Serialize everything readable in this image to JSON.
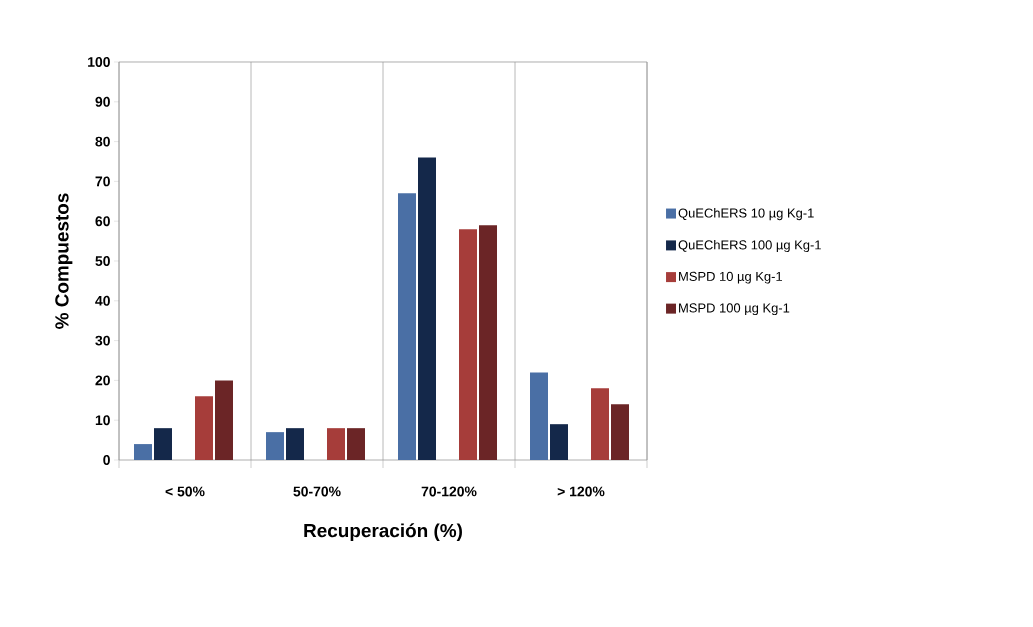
{
  "chart_data": {
    "type": "bar",
    "xlabel": "Recuperación (%)",
    "ylabel": "% Compuestos",
    "categories": [
      "< 50%",
      "50-70%",
      "70-120%",
      "> 120%"
    ],
    "series": [
      {
        "name": "QuEChERS 10 µg Kg-1",
        "color": "#4a6fa5",
        "values": [
          4,
          7,
          67,
          22
        ]
      },
      {
        "name": "QuEChERS 100 µg Kg-1",
        "color": "#14284a",
        "values": [
          8,
          8,
          76,
          9
        ]
      },
      {
        "name": "MSPD 10 µg Kg-1",
        "color": "#a63d3a",
        "values": [
          16,
          8,
          58,
          18
        ]
      },
      {
        "name": "MSPD 100 µg Kg-1",
        "color": "#6b2526",
        "values": [
          20,
          8,
          59,
          14
        ]
      }
    ],
    "ylim": [
      0,
      100
    ],
    "yticks": [
      0,
      10,
      20,
      30,
      40,
      50,
      60,
      70,
      80,
      90,
      100
    ],
    "grid": "x",
    "legend": "right"
  }
}
